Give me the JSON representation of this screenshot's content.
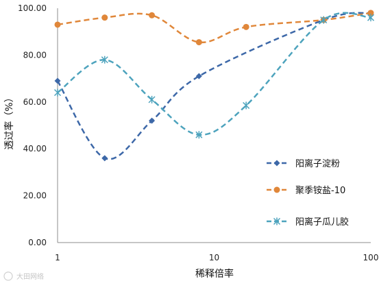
{
  "chart_data": {
    "type": "line",
    "x_scale": "log",
    "xlabel": "稀释倍率",
    "ylabel": "透过率（%）",
    "xlim": [
      1,
      100
    ],
    "ylim": [
      0,
      100
    ],
    "x_ticks": [
      "1",
      "10",
      "100"
    ],
    "y_ticks": [
      "0.00",
      "20.00",
      "40.00",
      "60.00",
      "80.00",
      "100.00"
    ],
    "grid": false,
    "legend_position": "lower-right",
    "series": [
      {
        "name": "阳离子淀粉",
        "color": "#3d68a8",
        "marker": "diamond",
        "x": [
          1,
          2,
          4,
          8,
          16,
          50,
          100
        ],
        "y": [
          69,
          36,
          52,
          71,
          null,
          95,
          98
        ]
      },
      {
        "name": "聚季铵盐-10",
        "color": "#e0873a",
        "marker": "circle",
        "x": [
          1,
          2,
          4,
          8,
          16,
          50,
          100
        ],
        "y": [
          93,
          96,
          97,
          85.5,
          92,
          95,
          98
        ]
      },
      {
        "name": "阳离子瓜儿胶",
        "color": "#4da3bd",
        "marker": "asterisk",
        "x": [
          1,
          2,
          4,
          8,
          16,
          50,
          100
        ],
        "y": [
          64,
          78,
          61,
          46,
          58.5,
          95,
          96
        ]
      }
    ]
  },
  "watermark": "大田网络"
}
